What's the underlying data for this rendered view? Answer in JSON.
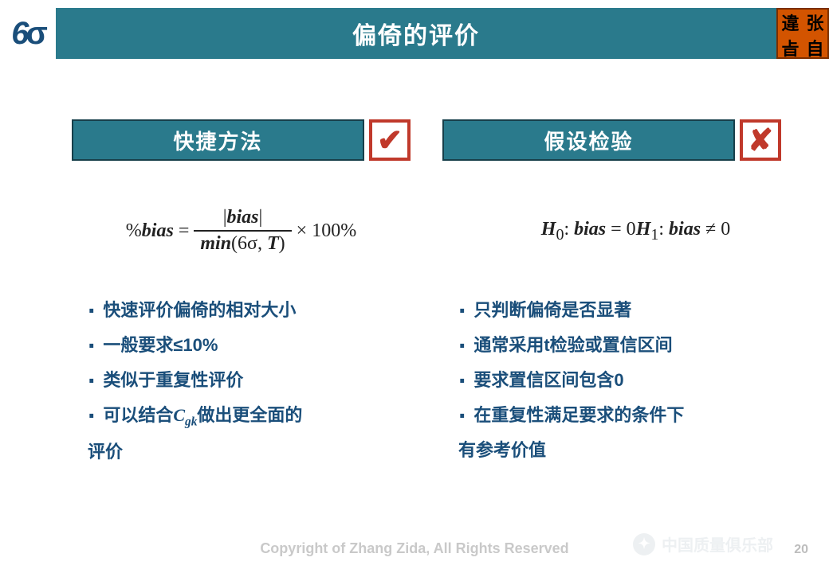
{
  "header": {
    "logo": "6σ",
    "title": "偏倚的评价",
    "seal": [
      "違",
      "张",
      "㫖",
      "自"
    ]
  },
  "left": {
    "label": "快捷方法",
    "mark": "✔",
    "formula": {
      "lhs": "%bias",
      "eq": " = ",
      "num": "|bias|",
      "den_prefix": "min",
      "den_args": "(6σ, T)",
      "tail": " × 100%"
    },
    "points": [
      "快速评价偏倚的相对大小",
      "一般要求≤10%",
      "类似于重复性评价",
      "可以结合 Cgk 做出更全面的评价"
    ]
  },
  "right": {
    "label": "假设检验",
    "mark": "✘",
    "hypotheses": {
      "h0": "H₀: bias = 0",
      "h1": "H₁: bias ≠ 0"
    },
    "points": [
      "只判断偏倚是否显著",
      "通常采用t检验或置信区间",
      "要求置信区间包含0",
      "在重复性满足要求的条件下有参考价值"
    ]
  },
  "footer": {
    "copyright": "Copyright of Zhang Zida,  All Rights Reserved",
    "watermark": "中国质量俱乐部",
    "page": "20"
  },
  "colors": {
    "teal": "#2a7a8c",
    "navy": "#1a4e7a",
    "red": "#c0392b",
    "seal": "#d35400"
  }
}
